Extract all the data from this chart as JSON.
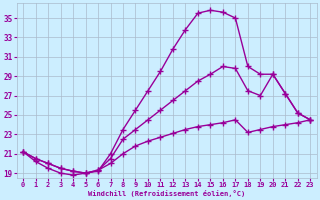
{
  "xlabel": "Windchill (Refroidissement éolien,°C)",
  "bg_color": "#cceeff",
  "line_color": "#990099",
  "grid_color": "#aabbcc",
  "ylim": [
    18.5,
    36.5
  ],
  "xlim": [
    -0.5,
    23.5
  ],
  "yticks": [
    19,
    21,
    23,
    25,
    27,
    29,
    31,
    33,
    35
  ],
  "xticks": [
    0,
    1,
    2,
    3,
    4,
    5,
    6,
    7,
    8,
    9,
    10,
    11,
    12,
    13,
    14,
    15,
    16,
    17,
    18,
    19,
    20,
    21,
    22,
    23
  ],
  "line1_x": [
    0,
    1,
    2,
    3,
    4,
    5,
    6,
    7,
    8,
    9,
    10,
    11,
    12,
    13,
    14,
    15,
    16,
    17,
    18,
    19,
    20,
    21,
    22,
    23
  ],
  "line1_y": [
    21.2,
    20.2,
    19.5,
    19.0,
    18.8,
    19.0,
    19.2,
    21.0,
    23.5,
    25.5,
    27.5,
    29.5,
    31.8,
    33.8,
    35.5,
    35.8,
    35.6,
    35.0,
    30.0,
    29.2,
    29.2,
    27.2,
    25.2,
    24.5
  ],
  "line2_x": [
    0,
    1,
    2,
    3,
    4,
    5,
    6,
    7,
    8,
    9,
    10,
    11,
    12,
    13,
    14,
    15,
    16,
    17,
    18,
    19,
    20,
    21,
    22,
    23
  ],
  "line2_y": [
    21.2,
    20.5,
    20.0,
    19.5,
    19.2,
    19.0,
    19.3,
    20.5,
    22.5,
    23.5,
    24.5,
    25.5,
    26.5,
    27.5,
    28.5,
    29.2,
    30.0,
    29.8,
    27.5,
    27.0,
    29.2,
    27.2,
    25.2,
    24.5
  ],
  "line3_x": [
    0,
    1,
    2,
    3,
    4,
    5,
    6,
    7,
    8,
    9,
    10,
    11,
    12,
    13,
    14,
    15,
    16,
    17,
    18,
    19,
    20,
    21,
    22,
    23
  ],
  "line3_y": [
    21.2,
    20.5,
    20.0,
    19.5,
    19.2,
    19.0,
    19.3,
    20.0,
    21.0,
    21.8,
    22.3,
    22.7,
    23.1,
    23.5,
    23.8,
    24.0,
    24.2,
    24.5,
    23.2,
    23.5,
    23.8,
    24.0,
    24.2,
    24.5
  ],
  "marker": "+",
  "markersize": 4,
  "linewidth": 1.0
}
